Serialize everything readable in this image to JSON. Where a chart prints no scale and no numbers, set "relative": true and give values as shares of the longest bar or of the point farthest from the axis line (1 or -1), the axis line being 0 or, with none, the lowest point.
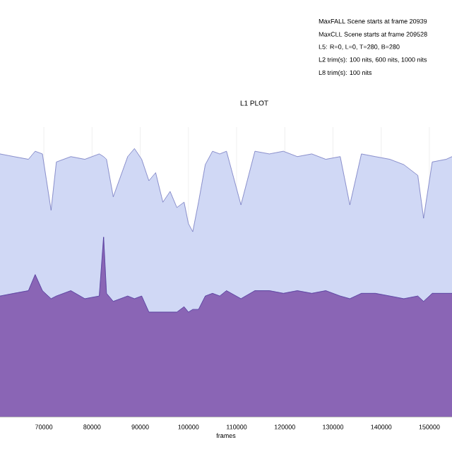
{
  "chart_data": {
    "type": "area",
    "title": "L1 PLOT",
    "xlabel": "frames",
    "relative": true,
    "grid": true,
    "annotations": [
      "MaxFALL Scene starts at frame 20939",
      "MaxCLL Scene starts at frame 209528",
      "L5: R=0, L=0, T=280, B=280",
      "L2 trim(s): 100 nits, 600 nits, 1000 nits",
      "L8 trim(s): 100 nits"
    ],
    "xlim": [
      60900,
      154700
    ],
    "xticks": [
      70000,
      80000,
      90000,
      100000,
      110000,
      120000,
      130000,
      140000,
      150000
    ],
    "x": [
      60900,
      63800,
      66800,
      68200,
      69700,
      71500,
      72600,
      75600,
      78500,
      81500,
      82400,
      83000,
      84400,
      87400,
      88800,
      90300,
      91800,
      93200,
      94700,
      96200,
      97600,
      99100,
      100000,
      100900,
      102100,
      103500,
      105000,
      106500,
      107900,
      110900,
      113800,
      116800,
      119700,
      122600,
      125600,
      128500,
      131500,
      133500,
      135900,
      138800,
      141800,
      144700,
      147600,
      148800,
      150600,
      153500,
      154700
    ],
    "series": [
      {
        "color": "#8a65b5",
        "values": [
          0.45,
          0.46,
          0.47,
          0.53,
          0.47,
          0.44,
          0.45,
          0.47,
          0.44,
          0.45,
          0.67,
          0.46,
          0.43,
          0.45,
          0.44,
          0.45,
          0.39,
          0.39,
          0.39,
          0.39,
          0.39,
          0.41,
          0.39,
          0.4,
          0.4,
          0.45,
          0.46,
          0.45,
          0.47,
          0.44,
          0.47,
          0.47,
          0.46,
          0.47,
          0.46,
          0.47,
          0.45,
          0.44,
          0.46,
          0.46,
          0.45,
          0.44,
          0.45,
          0.43,
          0.46,
          0.46,
          0.46
        ]
      },
      {
        "color": "#d0d8f5",
        "values": [
          0.98,
          0.97,
          0.96,
          0.99,
          0.98,
          0.77,
          0.95,
          0.97,
          0.96,
          0.98,
          0.97,
          0.96,
          0.82,
          0.97,
          1,
          0.96,
          0.88,
          0.91,
          0.8,
          0.84,
          0.78,
          0.8,
          0.72,
          0.69,
          0.8,
          0.94,
          0.99,
          0.98,
          0.99,
          0.79,
          0.99,
          0.98,
          0.99,
          0.97,
          0.98,
          0.96,
          0.97,
          0.79,
          0.98,
          0.97,
          0.96,
          0.94,
          0.9,
          0.74,
          0.95,
          0.96,
          0.97
        ]
      }
    ]
  }
}
